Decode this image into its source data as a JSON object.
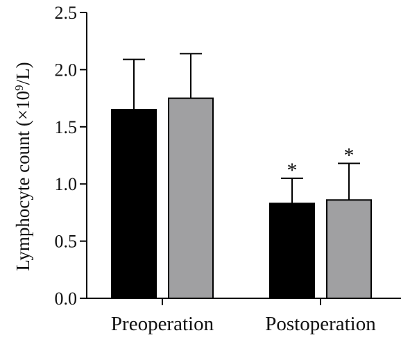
{
  "chart_data": {
    "type": "bar",
    "categories": [
      "Preoperation",
      "Postoperation"
    ],
    "series": [
      {
        "values": [
          1.65,
          0.83
        ],
        "errors": [
          0.44,
          0.22
        ],
        "color": "#000000"
      },
      {
        "values": [
          1.75,
          0.86
        ],
        "errors": [
          0.39,
          0.32
        ],
        "color": "#a0a0a2"
      }
    ],
    "annotations": [
      {
        "category": "Postoperation",
        "series": 0,
        "text": "*"
      },
      {
        "category": "Postoperation",
        "series": 1,
        "text": "*"
      }
    ],
    "xlabel": "",
    "ylabel_main": "Lymphocyte count (×10",
    "ylabel_sup": "9",
    "ylabel_end": "/L)",
    "ylim": [
      0,
      2.5
    ],
    "yticks": [
      "0.0",
      "0.5",
      "1.0",
      "1.5",
      "2.0",
      "2.5"
    ],
    "grid": false
  }
}
